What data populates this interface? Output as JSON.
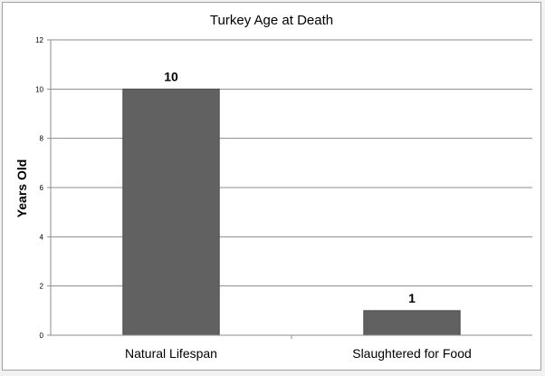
{
  "chart_data": {
    "type": "bar",
    "title": "Turkey Age at Death",
    "xlabel": "",
    "ylabel": "Years Old",
    "categories": [
      "Natural Lifespan",
      "Slaughtered for Food"
    ],
    "values": [
      10,
      1
    ],
    "data_labels": [
      "10",
      "1"
    ],
    "ylim": [
      0,
      12
    ],
    "yticks": [
      0,
      2,
      4,
      6,
      8,
      10,
      12
    ],
    "grid": true,
    "legend": "none",
    "colors": {
      "bar": "#616161",
      "bar_border": "#4a4a4a",
      "grid": "#8c8c8c",
      "axis": "#8c8c8c",
      "text": "#000000"
    }
  }
}
